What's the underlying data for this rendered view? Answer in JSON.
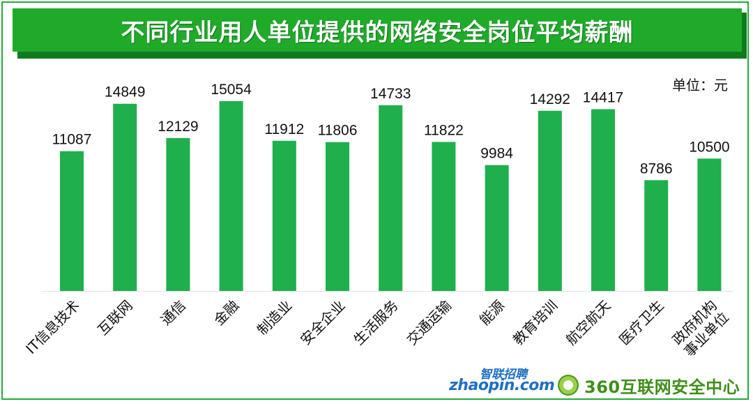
{
  "title": "不同行业用人单位提供的网络安全岗位平均薪酬",
  "unit": "单位：元",
  "colors": {
    "bar": "#1faf4d",
    "title_bg": "#20aa2a",
    "border": "#22ac38"
  },
  "logos": {
    "zhaopin_cn": "智联招聘",
    "zhaopin_en": "zhaopin.com",
    "security_center": "360互联网安全中心"
  },
  "chart_data": {
    "type": "bar",
    "title": "不同行业用人单位提供的网络安全岗位平均薪酬",
    "ylabel": "",
    "xlabel": "",
    "categories": [
      "IT信息技术",
      "互联网",
      "通信",
      "金融",
      "制造业",
      "安全企业",
      "生活服务",
      "交通运输",
      "能源",
      "教育培训",
      "航空航天",
      "医疗卫生",
      "政府机构事业单位"
    ],
    "category_lines": [
      [
        "IT信息技术"
      ],
      [
        "互联网"
      ],
      [
        "通信"
      ],
      [
        "金融"
      ],
      [
        "制造业"
      ],
      [
        "安全企业"
      ],
      [
        "生活服务"
      ],
      [
        "交通运输"
      ],
      [
        "能源"
      ],
      [
        "教育培训"
      ],
      [
        "航空航天"
      ],
      [
        "医疗卫生"
      ],
      [
        "政府机构",
        "事业单位"
      ]
    ],
    "values": [
      11087,
      14849,
      12129,
      15054,
      11912,
      11806,
      14733,
      11822,
      9984,
      14292,
      14417,
      8786,
      10500
    ],
    "ylim": [
      0,
      15200
    ],
    "grid": false,
    "legend": "none"
  }
}
